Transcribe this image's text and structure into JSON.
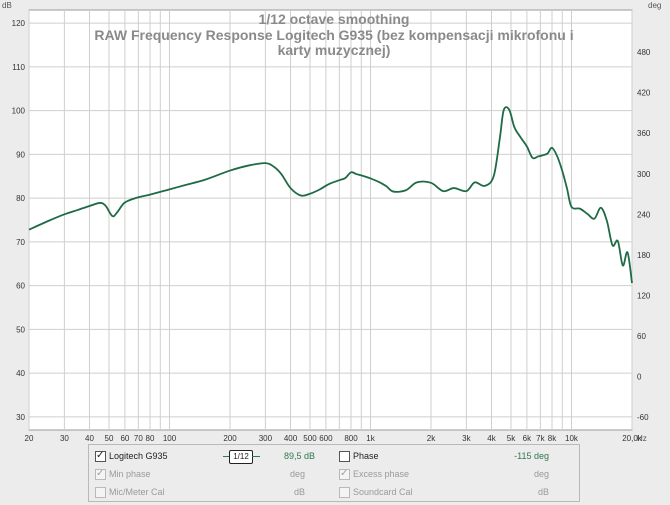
{
  "chart_data": {
    "type": "line",
    "title": "1/12 octave smoothing",
    "subtitle": "RAW Frequency Response Logitech G935 (bez kompensacji mikrofonu i karty muzycznej)",
    "y_unit_left": "dB",
    "y_unit_right": "deg",
    "x_unit": "Hz",
    "x_scale": "log",
    "xlim": [
      20,
      20000
    ],
    "ylim": [
      27,
      123
    ],
    "y2lim": [
      -79.2,
      542.4
    ],
    "x_ticks": [
      20,
      30,
      40,
      50,
      60,
      70,
      80,
      100,
      200,
      300,
      400,
      500,
      600,
      800,
      1000,
      2000,
      3000,
      4000,
      5000,
      6000,
      7000,
      8000,
      10000,
      20000
    ],
    "x_tick_labels": [
      "20",
      "30",
      "40",
      "50",
      "60",
      "70",
      "80",
      "100",
      "200",
      "300",
      "400",
      "500",
      "600",
      "800",
      "1k",
      "2k",
      "3k",
      "4k",
      "5k",
      "6k",
      "7k",
      "8k",
      "10k",
      "20,0k"
    ],
    "x_unit_label_position": "after-last-tick",
    "y_ticks": [
      30,
      40,
      50,
      60,
      70,
      80,
      90,
      100,
      110,
      120
    ],
    "y2_ticks": [
      -60,
      0,
      60,
      120,
      180,
      240,
      300,
      360,
      420,
      480
    ],
    "grid": true,
    "series": [
      {
        "name": "Logitech G935",
        "color": "#1e6b45",
        "x": [
          20,
          25,
          30,
          35,
          40,
          45,
          48,
          52,
          55,
          60,
          70,
          80,
          100,
          120,
          150,
          200,
          250,
          300,
          330,
          360,
          400,
          450,
          500,
          560,
          620,
          700,
          750,
          800,
          850,
          900,
          1000,
          1100,
          1200,
          1300,
          1500,
          1700,
          2000,
          2300,
          2600,
          3000,
          3300,
          3700,
          4100,
          4400,
          4600,
          4900,
          5200,
          5600,
          6000,
          6400,
          6800,
          7200,
          7600,
          8000,
          8500,
          9000,
          9500,
          10000,
          11000,
          12000,
          13000,
          14000,
          15000,
          16000,
          17000,
          18000,
          19000,
          20000
        ],
        "y": [
          72.8,
          74.8,
          76.3,
          77.3,
          78.2,
          78.9,
          78.3,
          75.9,
          76.8,
          79.0,
          80.2,
          80.8,
          82.0,
          83.0,
          84.2,
          86.3,
          87.5,
          88.0,
          87.2,
          85.5,
          82.3,
          80.6,
          81.0,
          82.0,
          83.2,
          84.1,
          84.6,
          85.9,
          85.5,
          85.2,
          84.5,
          83.7,
          82.7,
          81.5,
          81.8,
          83.6,
          83.5,
          81.6,
          82.3,
          81.6,
          83.6,
          82.8,
          85.0,
          93.7,
          100.1,
          100.2,
          96.2,
          93.8,
          91.8,
          89.2,
          89.5,
          89.8,
          90.2,
          91.5,
          89.5,
          86.2,
          82.2,
          78.0,
          77.6,
          76.4,
          75.3,
          77.8,
          74.8,
          69.2,
          70.2,
          64.6,
          67.6,
          60.6
        ]
      },
      {
        "name": "Phase",
        "x": [],
        "y": []
      }
    ],
    "legend_position": "bottom"
  },
  "legend": {
    "rows": [
      {
        "left": {
          "label": "Logitech G935",
          "checked": true,
          "enabled": true,
          "value": "89,5 dB",
          "smoothing": "1/12"
        },
        "right": {
          "label": "Phase",
          "checked": false,
          "enabled": true,
          "value": "-115 deg"
        }
      },
      {
        "left": {
          "label": "Min phase",
          "checked": true,
          "enabled": false,
          "value": "deg"
        },
        "right": {
          "label": "Excess phase",
          "checked": true,
          "enabled": false,
          "value": "deg"
        }
      },
      {
        "left": {
          "label": "Mic/Meter Cal",
          "checked": false,
          "enabled": false,
          "value": "dB"
        },
        "right": {
          "label": "Soundcard Cal",
          "checked": false,
          "enabled": false,
          "value": "dB"
        }
      }
    ]
  },
  "colors": {
    "background": "#ececec",
    "plot_background": "#ffffff",
    "grid": "#c8c8c8",
    "title": "#8a8a8a",
    "trace": "#1e6b45",
    "legend_value": "#2f7a4e"
  }
}
